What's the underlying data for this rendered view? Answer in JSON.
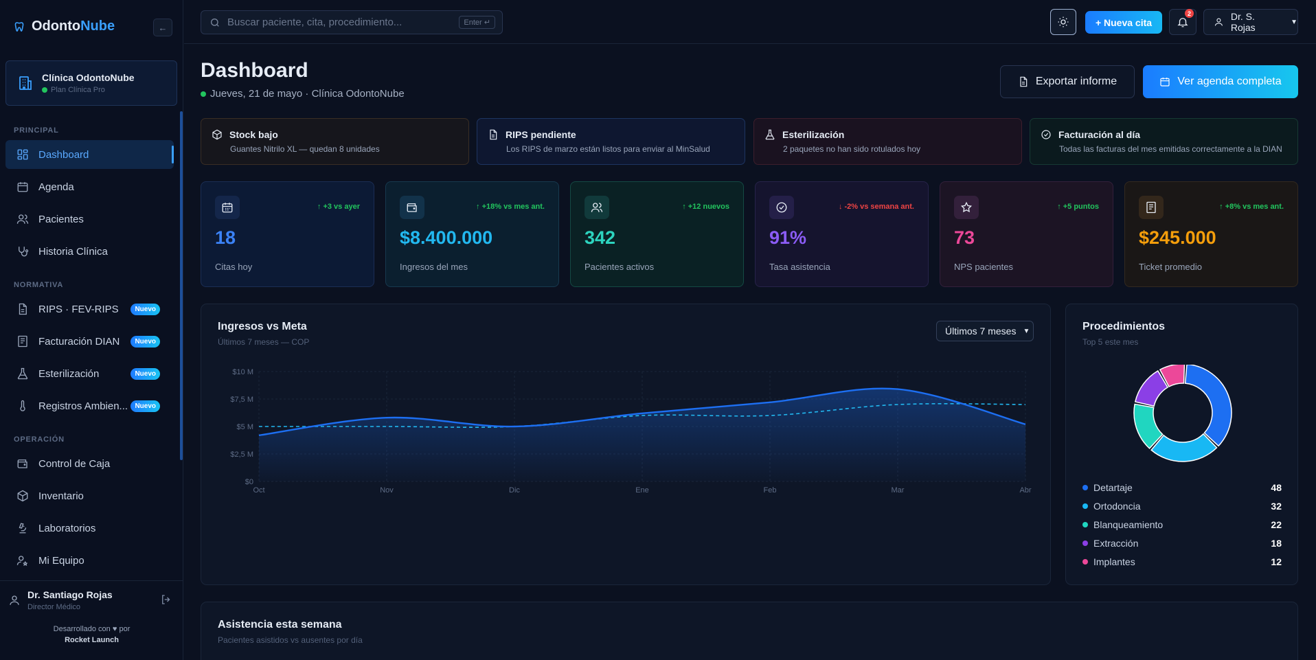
{
  "app": {
    "brand_a": "Odonto",
    "brand_b": "Nube",
    "accent": "#3aa0ff"
  },
  "sidebar": {
    "collapse_icon": "←",
    "clinic": {
      "name": "Clínica OdontoNube",
      "plan": "Plan Clínica Pro"
    },
    "sections": {
      "principal": "PRINCIPAL",
      "normativa": "NORMATIVA",
      "operacion": "OPERACIÓN"
    },
    "items": [
      {
        "label": "Dashboard",
        "icon": "grid-icon",
        "active": true
      },
      {
        "label": "Agenda",
        "icon": "calendar-icon"
      },
      {
        "label": "Pacientes",
        "icon": "users-icon"
      },
      {
        "label": "Historia Clínica",
        "icon": "stethoscope-icon"
      },
      {
        "label": "RIPS · FEV-RIPS",
        "icon": "file-icon",
        "badge": "Nuevo"
      },
      {
        "label": "Facturación DIAN",
        "icon": "receipt-icon",
        "badge": "Nuevo"
      },
      {
        "label": "Esterilización",
        "icon": "flask-icon",
        "badge": "Nuevo"
      },
      {
        "label": "Registros Ambien...",
        "icon": "thermometer-icon",
        "badge": "Nuevo"
      },
      {
        "label": "Control de Caja",
        "icon": "wallet-icon"
      },
      {
        "label": "Inventario",
        "icon": "box-icon"
      },
      {
        "label": "Laboratorios",
        "icon": "microscope-icon"
      },
      {
        "label": "Mi Equipo",
        "icon": "team-icon"
      }
    ],
    "user": {
      "name": "Dr. Santiago Rojas",
      "role": "Director Médico"
    },
    "credit_line1": "Desarrollado con",
    "credit_line1b": "por",
    "credit_line2": "Rocket Launch"
  },
  "topbar": {
    "search_placeholder": "Buscar paciente, cita, procedimiento...",
    "search_hint": "Enter ↵",
    "new_appointment": "+ Nueva cita",
    "notifications": "2",
    "profile": "Dr. S. Rojas"
  },
  "header": {
    "title": "Dashboard",
    "subtitle": "Jueves, 21 de mayo · Clínica OdontoNube",
    "export": "Exportar informe",
    "agenda": "Ver agenda completa"
  },
  "alerts": [
    {
      "title": "Stock bajo",
      "body": "Guantes Nitrilo XL — quedan 8 unidades",
      "icon": "box-icon",
      "bg": "#16161c",
      "border": "#3a2e24"
    },
    {
      "title": "RIPS pendiente",
      "body": "Los RIPS de marzo están listos para enviar al MinSalud",
      "icon": "file-icon",
      "bg": "#0e1730",
      "border": "#1e3561"
    },
    {
      "title": "Esterilización",
      "body": "2 paquetes no han sido rotulados hoy",
      "icon": "flask-icon",
      "bg": "#1a1220",
      "border": "#3d1e2c"
    },
    {
      "title": "Facturación al día",
      "body": "Todas las facturas del mes emitidas correctamente a la DIAN",
      "icon": "check-circle-icon",
      "bg": "#0b1a1e",
      "border": "#173a33"
    }
  ],
  "kpis": [
    {
      "value": "18",
      "label": "Citas hoy",
      "delta": "↑ +3 vs ayer",
      "delta_color": "#22c55e",
      "color": "#3b82f6",
      "bg": "#0c1a35",
      "border": "#1b2e55",
      "iconbg": "#14264a",
      "icon": "calendar-icon"
    },
    {
      "value": "$8.400.000",
      "label": "Ingresos del mes",
      "delta": "↑ +18% vs mes ant.",
      "delta_color": "#22c55e",
      "color": "#22b8f0",
      "bg": "#0b1f2f",
      "border": "#17394f",
      "iconbg": "#12324a",
      "icon": "wallet-icon"
    },
    {
      "value": "342",
      "label": "Pacientes activos",
      "delta": "↑ +12 nuevos",
      "delta_color": "#22c55e",
      "color": "#2dd4bf",
      "bg": "#0a2124",
      "border": "#144a44",
      "iconbg": "#113a3b",
      "icon": "users-icon"
    },
    {
      "value": "91%",
      "label": "Tasa asistencia",
      "delta": "↓ -2% vs semana ant.",
      "delta_color": "#ef4444",
      "color": "#8b5cf6",
      "bg": "#15142e",
      "border": "#27234a",
      "iconbg": "#241f48",
      "icon": "check-circle-icon"
    },
    {
      "value": "73",
      "label": "NPS pacientes",
      "delta": "↑ +5 puntos",
      "delta_color": "#22c55e",
      "color": "#ec4899",
      "bg": "#1c1424",
      "border": "#33203b",
      "iconbg": "#33203b",
      "icon": "star-icon"
    },
    {
      "value": "$245.000",
      "label": "Ticket promedio",
      "delta": "↑ +8% vs mes ant.",
      "delta_color": "#22c55e",
      "color": "#f59e0b",
      "bg": "#1a1716",
      "border": "#33291f",
      "iconbg": "#33271b",
      "icon": "receipt-icon"
    }
  ],
  "revenue_panel": {
    "title": "Ingresos vs Meta",
    "subtitle": "Últimos 7 meses — COP",
    "range_label": "Últimos 7 meses"
  },
  "chart_data": [
    {
      "type": "area",
      "categories": [
        "Oct",
        "Nov",
        "Dic",
        "Ene",
        "Feb",
        "Mar",
        "Abr"
      ],
      "y_ticks": [
        "$0",
        "$2,5 M",
        "$5 M",
        "$7,5 M",
        "$10 M"
      ],
      "ylim": [
        0,
        10
      ],
      "grid": true,
      "series": [
        {
          "values": [
            4.2,
            5.8,
            5.0,
            6.2,
            7.2,
            8.4,
            5.2
          ],
          "color": "#1d6ff2",
          "style": "solid"
        },
        {
          "values": [
            5.0,
            5.0,
            5.0,
            6.0,
            6.0,
            7.0,
            7.0
          ],
          "color": "#22b8f0",
          "style": "dashed"
        }
      ]
    },
    {
      "type": "pie",
      "title": "Procedimientos",
      "subtitle": "Top 5 este mes",
      "series": [
        {
          "name": "Detartaje",
          "value": 48,
          "color": "#1d6ff2"
        },
        {
          "name": "Ortodoncia",
          "value": 32,
          "color": "#18b8f4"
        },
        {
          "name": "Blanqueamiento",
          "value": 22,
          "color": "#20d6c0"
        },
        {
          "name": "Extracción",
          "value": 18,
          "color": "#8b3fe6"
        },
        {
          "name": "Implantes",
          "value": 12,
          "color": "#ec4899"
        }
      ]
    }
  ],
  "attendance_panel": {
    "title": "Asistencia esta semana",
    "subtitle": "Pacientes asistidos vs ausentes por día"
  }
}
